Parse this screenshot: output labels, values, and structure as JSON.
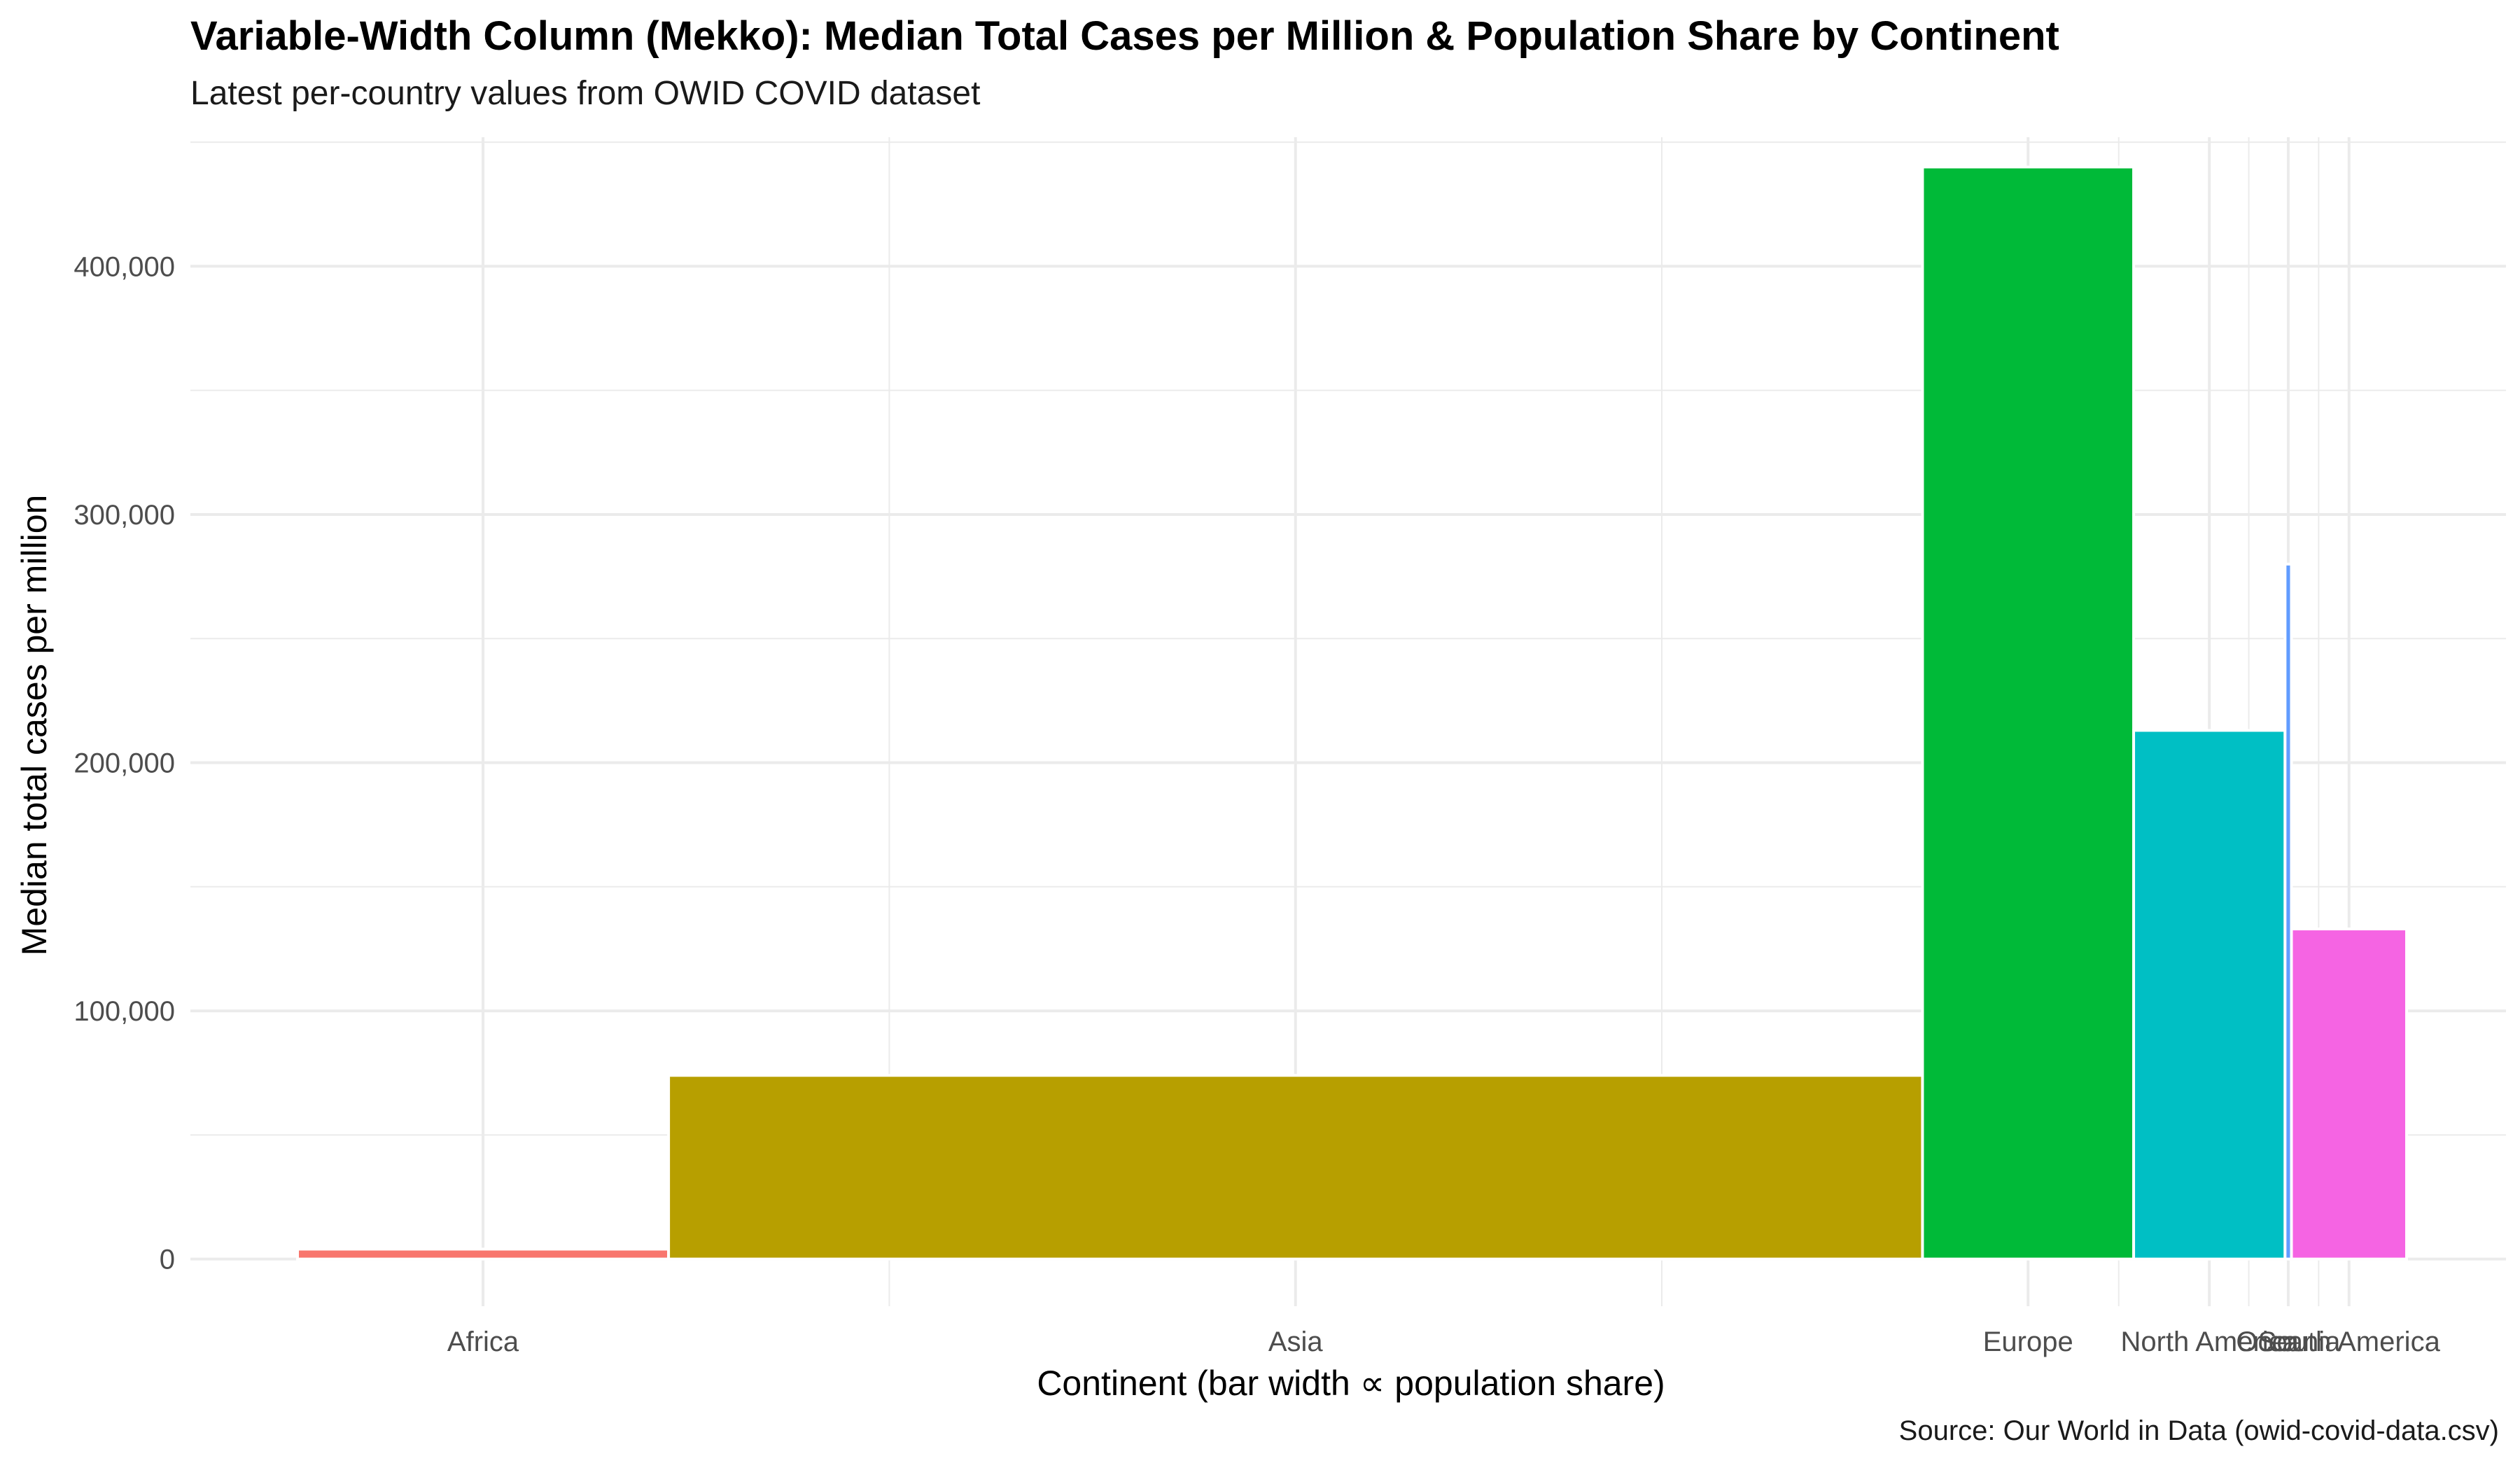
{
  "chart_data": {
    "type": "bar",
    "variant": "variable-width",
    "title": "Variable-Width Column (Mekko): Median Total Cases per Million & Population Share by Continent",
    "subtitle": "Latest per-country values from OWID COVID dataset",
    "caption": "Source: Our World in Data (owid-covid-data.csv)",
    "xlabel": "Continent (bar width ∝ population share)",
    "ylabel": "Median total cases per million",
    "ylim": [
      -19000,
      452000
    ],
    "yticks": [
      0,
      100000,
      200000,
      300000,
      400000
    ],
    "ytick_labels": [
      "0",
      "100,000",
      "200,000",
      "300,000",
      "400,000"
    ],
    "grid": true,
    "legend": "none",
    "categories": [
      "Africa",
      "Asia",
      "Europe",
      "North America",
      "Oceania",
      "South America"
    ],
    "population_share": [
      0.174,
      0.588,
      0.099,
      0.071,
      0.003,
      0.054
    ],
    "values": [
      4000,
      74000,
      440000,
      213000,
      280000,
      133000
    ],
    "colors": [
      "#F8766D",
      "#B79F00",
      "#00BA38",
      "#00BFC4",
      "#619CFF",
      "#F564E3"
    ]
  }
}
